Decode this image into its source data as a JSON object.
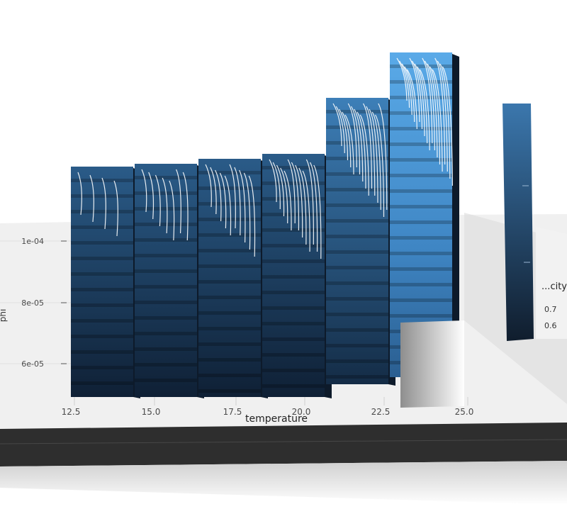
{
  "chart_data": {
    "type": "bar",
    "render_style": "3d-extruded",
    "xlabel": "temperature",
    "ylabel": "phi",
    "x_ticks": [
      "12.5",
      "15.0",
      "17.5",
      "20.0",
      "22.5",
      "25.0"
    ],
    "y_ticks": [
      "1e-04",
      "8e-05",
      "6e-05"
    ],
    "categories": [
      "13",
      "15.5",
      "18",
      "20.5",
      "23",
      "25.5"
    ],
    "series": [
      {
        "values": [
          1.05,
          1.05,
          1.06,
          1.07,
          1.32,
          1.52
        ]
      }
    ],
    "legend": {
      "title": "...city",
      "labels": [
        "0.7",
        "0.6"
      ],
      "placement": "right"
    },
    "colors": {
      "bar_dark": "#13263d",
      "bar_light": "#56a6e6",
      "contour": "#ffffff",
      "panel": "#efefef",
      "base": "#2f2f2f"
    }
  }
}
